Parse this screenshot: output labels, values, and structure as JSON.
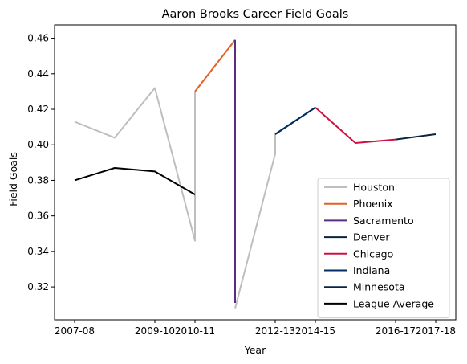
{
  "chart_data": {
    "type": "line",
    "title": "Aaron Brooks  Career Field Goals",
    "xlabel": "Year",
    "ylabel": "Field Goals",
    "x_ticks": [
      "2007-08",
      "2009-10",
      "2010-11",
      "2012-13",
      "2014-15",
      "2016-17",
      "2017-18"
    ],
    "x_tick_positions": [
      0,
      2,
      3,
      5,
      6,
      8,
      9
    ],
    "xlim": [
      -0.5,
      9.5
    ],
    "y_ticks": [
      "0.32",
      "0.34",
      "0.36",
      "0.38",
      "0.40",
      "0.42",
      "0.44",
      "0.46"
    ],
    "ylim": [
      0.3015,
      0.4675
    ],
    "grid": false,
    "legend_position": "lower-right",
    "series": [
      {
        "name": "Houston",
        "color": "#bebebe",
        "points": [
          [
            0,
            0.413
          ],
          [
            1,
            0.404
          ],
          [
            2,
            0.432
          ],
          [
            3,
            0.346
          ],
          [
            3,
            0.43
          ],
          [
            null,
            null
          ],
          [
            4,
            0.308
          ],
          [
            5,
            0.395
          ],
          [
            5,
            0.406
          ]
        ]
      },
      {
        "name": "Phoenix",
        "color": "#e56020",
        "points": [
          [
            3,
            0.43
          ],
          [
            4,
            0.459
          ]
        ]
      },
      {
        "name": "Sacramento",
        "color": "#5a2d81",
        "points": [
          [
            4,
            0.459
          ],
          [
            4,
            0.311
          ]
        ]
      },
      {
        "name": "Denver",
        "color": "#0e2240",
        "points": [
          [
            5,
            0.406
          ],
          [
            6,
            0.421
          ]
        ]
      },
      {
        "name": "Chicago",
        "color": "#ce1141",
        "points": [
          [
            6,
            0.421
          ],
          [
            7,
            0.401
          ],
          [
            8,
            0.403
          ]
        ]
      },
      {
        "name": "Indiana",
        "color": "#002d62",
        "points": [
          [
            5,
            0.406
          ],
          [
            6,
            0.421
          ]
        ]
      },
      {
        "name": "Minnesota",
        "color": "#0c2340",
        "points": [
          [
            8,
            0.403
          ],
          [
            9,
            0.406
          ]
        ]
      },
      {
        "name": "League Average",
        "color": "#000000",
        "points": [
          [
            0,
            0.38
          ],
          [
            1,
            0.387
          ],
          [
            2,
            0.385
          ],
          [
            3,
            0.372
          ]
        ]
      }
    ]
  }
}
